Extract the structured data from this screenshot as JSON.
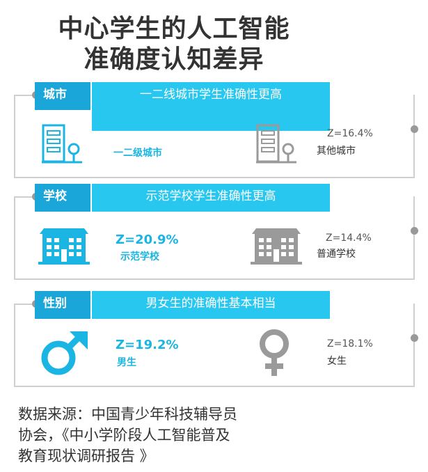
{
  "title": {
    "line1": "中心学生的人工智能",
    "line2": "准确度认知差异"
  },
  "colors": {
    "accent": "#28c7ef",
    "tag": "#1aa6d8",
    "teal": "#1ab5e2",
    "gray": "#9a9a9a"
  },
  "chart_data": {
    "type": "table",
    "title": "中心学生的人工智能准确度认知差异",
    "sections": [
      {
        "tag": "城市",
        "headline": "一二线城市学生准确性更高",
        "left": {
          "label": "一二级城市",
          "value": null,
          "icon": "building-icon"
        },
        "right": {
          "label": "其他城市",
          "value": "Z=16.4%",
          "icon": "building-icon"
        }
      },
      {
        "tag": "学校",
        "headline": "示范学校学生准确性更高",
        "left": {
          "label": "示范学校",
          "value": "Z=20.9%",
          "icon": "school-icon"
        },
        "right": {
          "label": "普通学校",
          "value": "Z=14.4%",
          "icon": "school-icon"
        }
      },
      {
        "tag": "性别",
        "headline": "男女生的准确性基本相当",
        "left": {
          "label": "男生",
          "value": "Z=19.2%",
          "icon": "male-icon"
        },
        "right": {
          "label": "女生",
          "value": "Z=18.1%",
          "icon": "female-icon"
        }
      }
    ]
  },
  "source": {
    "line1": "数据来源：中国青少年科技辅导员",
    "line2": "协会，《中小学阶段人工智能普及",
    "line3": "教育现状调研报告 》"
  }
}
